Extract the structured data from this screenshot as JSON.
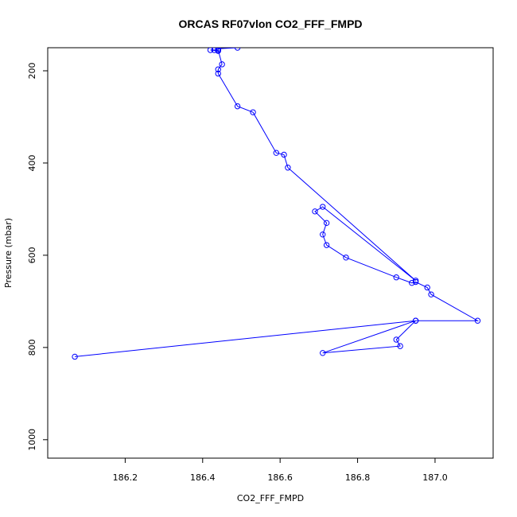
{
  "chart_data": {
    "type": "line",
    "title": "ORCAS RF07vlon CO2_FFF_FMPD",
    "xlabel": "CO2_FFF_FMPD",
    "ylabel": "Pressure (mbar)",
    "xlim": [
      186.0,
      187.15
    ],
    "ylim": [
      1040,
      150
    ],
    "y_reversed": true,
    "x_ticks": [
      186.2,
      186.4,
      186.6,
      186.8,
      187.0
    ],
    "x_tick_labels": [
      "186.2",
      "186.4",
      "186.6",
      "186.8",
      "187.0"
    ],
    "y_ticks": [
      200,
      400,
      600,
      800,
      1000
    ],
    "y_tick_labels": [
      "200",
      "400",
      "600",
      "800",
      "1000"
    ],
    "grid": false,
    "legend": "none",
    "series": [
      {
        "color": "#0000ff",
        "marker": "open-circle",
        "x": [
          186.07,
          186.95,
          186.71,
          186.91,
          186.9,
          186.95,
          187.11,
          186.99,
          186.98,
          186.95,
          186.94,
          186.9,
          186.77,
          186.72,
          186.71,
          186.72,
          186.69,
          186.71,
          186.95,
          186.62,
          186.61,
          186.59,
          186.53,
          186.49,
          186.44,
          186.44,
          186.45,
          186.44,
          186.44,
          186.42,
          186.43,
          186.44,
          186.44,
          186.49
        ],
        "y": [
          820,
          742,
          812,
          797,
          783,
          742,
          742,
          685,
          670,
          658,
          660,
          648,
          605,
          578,
          555,
          530,
          505,
          495,
          655,
          410,
          382,
          378,
          290,
          277,
          206,
          197,
          186,
          155,
          157,
          155,
          155,
          155,
          152,
          150
        ]
      }
    ]
  }
}
